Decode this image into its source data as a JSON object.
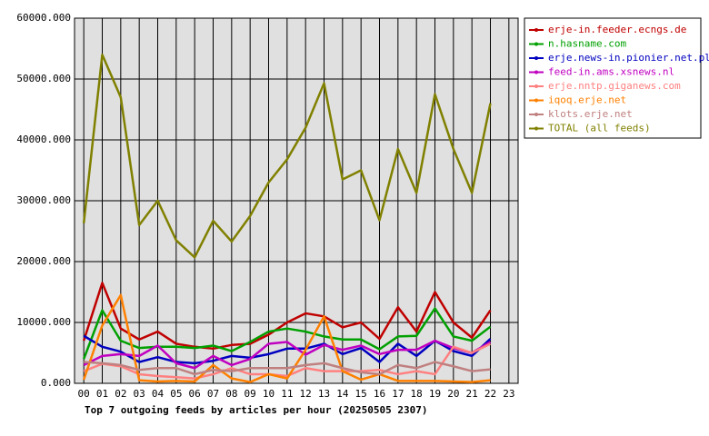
{
  "chart_data": {
    "type": "line",
    "title": "Top 7 outgoing feeds by articles per hour (20250505 2307)",
    "categories": [
      "00",
      "01",
      "02",
      "03",
      "04",
      "05",
      "06",
      "07",
      "08",
      "09",
      "10",
      "11",
      "12",
      "13",
      "14",
      "15",
      "16",
      "17",
      "18",
      "19",
      "20",
      "21",
      "22",
      "23"
    ],
    "ylim": [
      0,
      60000
    ],
    "yticks": [
      {
        "value": 0,
        "label": "0.000"
      },
      {
        "value": 10000,
        "label": "10000.000"
      },
      {
        "value": 20000,
        "label": "20000.000"
      },
      {
        "value": 30000,
        "label": "30000.000"
      },
      {
        "value": 40000,
        "label": "40000.000"
      },
      {
        "value": 50000,
        "label": "50000.000"
      },
      {
        "value": 60000,
        "label": "60000.000"
      }
    ],
    "grid": true,
    "legend": "right",
    "series": [
      {
        "name": "erje-in.feeder.ecngs.de",
        "color": "#c00000",
        "values": [
          7000,
          16500,
          9000,
          7200,
          8500,
          6500,
          6000,
          5700,
          6300,
          6500,
          8000,
          10000,
          11500,
          11000,
          9200,
          10000,
          7300,
          12500,
          8500,
          15000,
          10000,
          7500,
          12000,
          null
        ]
      },
      {
        "name": "n.hasname.com",
        "color": "#00a000",
        "values": [
          4000,
          12000,
          7000,
          5800,
          6000,
          6000,
          5800,
          6200,
          5300,
          6800,
          8500,
          9000,
          8500,
          7700,
          7200,
          7200,
          5600,
          7700,
          7800,
          12300,
          7700,
          7000,
          9300,
          null
        ]
      },
      {
        "name": "erje.news-in.pionier.net.pl",
        "color": "#0000c0",
        "values": [
          7800,
          6000,
          5200,
          3500,
          4300,
          3500,
          3300,
          3700,
          4500,
          4200,
          4800,
          5700,
          5700,
          6500,
          4800,
          5800,
          3500,
          6500,
          4500,
          7000,
          5300,
          4500,
          7300,
          null
        ]
      },
      {
        "name": "feed-in.ams.xsnews.nl",
        "color": "#c000c0",
        "values": [
          3000,
          4500,
          4800,
          4500,
          6200,
          3300,
          2500,
          4500,
          3000,
          4000,
          6500,
          6800,
          4700,
          6300,
          5500,
          6200,
          4800,
          5500,
          5500,
          7000,
          5800,
          5000,
          6800,
          null
        ]
      },
      {
        "name": "erje.nntp.giganews.com",
        "color": "#ff8080",
        "values": [
          2000,
          3200,
          2800,
          1500,
          1200,
          1000,
          800,
          1500,
          2500,
          1500,
          1500,
          1200,
          2500,
          2000,
          2000,
          2000,
          2200,
          1500,
          2000,
          1500,
          6000,
          5000,
          6500,
          null
        ]
      },
      {
        "name": "iqoq.erje.net",
        "color": "#ff8000",
        "values": [
          600,
          9500,
          14500,
          500,
          300,
          400,
          300,
          3000,
          800,
          200,
          1500,
          800,
          5500,
          11000,
          2000,
          600,
          1500,
          400,
          400,
          400,
          300,
          200,
          500,
          null
        ]
      },
      {
        "name": "klots.erje.net",
        "color": "#c08080",
        "values": [
          3500,
          3300,
          3000,
          2200,
          2500,
          2500,
          1500,
          2200,
          2000,
          2500,
          2500,
          2500,
          3000,
          3300,
          2500,
          1800,
          1500,
          3000,
          2500,
          3500,
          2800,
          2000,
          2300,
          null
        ]
      },
      {
        "name": "TOTAL (all feeds)",
        "color": "#808000",
        "values": [
          26300,
          54000,
          47000,
          26000,
          30000,
          23500,
          20700,
          26700,
          23300,
          27500,
          33000,
          36800,
          42000,
          49300,
          33500,
          35000,
          26800,
          38500,
          31300,
          47500,
          38500,
          31300,
          46000,
          null
        ]
      }
    ]
  }
}
